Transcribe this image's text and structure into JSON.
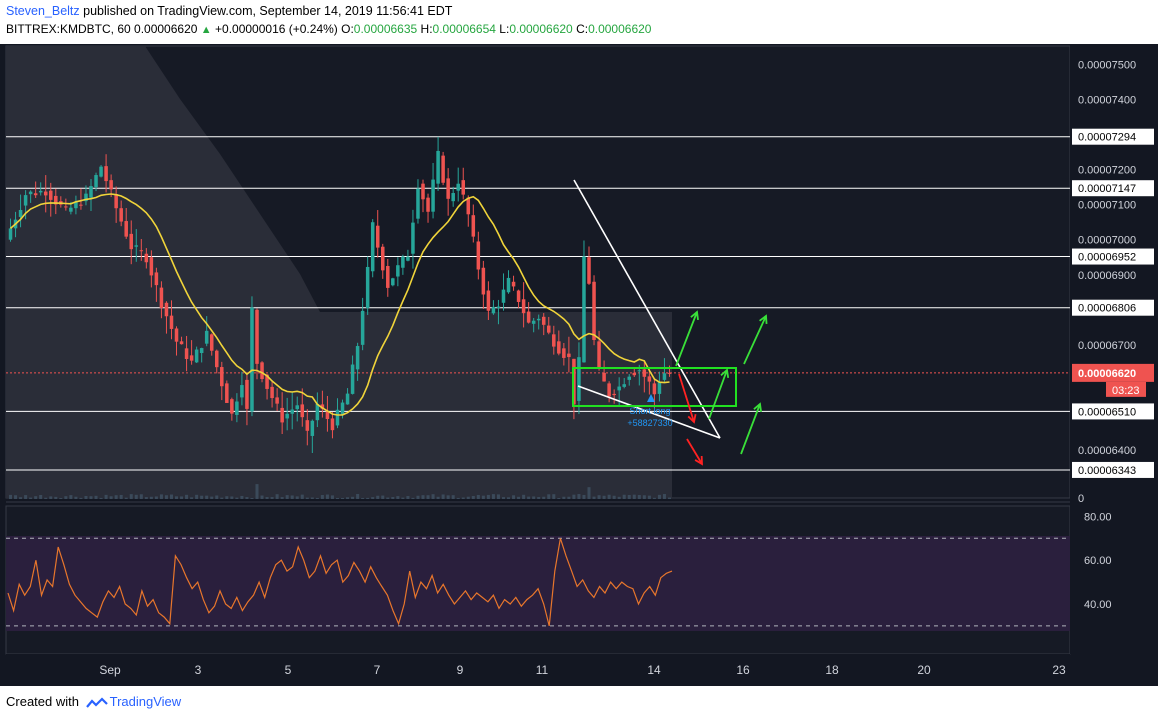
{
  "header": {
    "author": "Steven_Beltz",
    "published": "published on TradingView.com, September 14, 2019 11:56:41 EDT",
    "symbol": "BITTREX:KMDBTC, 60",
    "last": "0.00006620",
    "change_arrow": "▲",
    "change": "+0.00000016 (+0.24%)",
    "open_label": "O:",
    "open": "0.00006635",
    "high_label": "H:",
    "high": "0.00006654",
    "low_label": "L:",
    "low": "0.00006620",
    "close_label": "C:",
    "close": "0.00006620"
  },
  "footer": {
    "created_with": "Created with",
    "brand": "TradingView"
  },
  "chart_data": [
    {
      "type": "candlestick",
      "title": "",
      "x_ticks": [
        "Sep",
        "3",
        "5",
        "7",
        "9",
        "11",
        "14",
        "16",
        "18",
        "20",
        "23"
      ],
      "y_ticks": [
        "0.00007500",
        "0.00007400",
        "0.00007200",
        "0.00007100",
        "0.00007000",
        "0.00006900",
        "0.00006700",
        "0.00006400"
      ],
      "ylim": [
        6.32e-05,
        7.53e-05
      ],
      "horizontal_levels": [
        "0.00007294",
        "0.00007147",
        "0.00006952",
        "0.00006806",
        "0.00006510",
        "0.00006343"
      ],
      "current_price": "0.00006620",
      "countdown": "03:23",
      "volume_axis_label": "0",
      "moving_average_color": "#f0d43a",
      "up_color": "#26a69a",
      "down_color": "#ef5350",
      "annotation_lines": [
        "Short long",
        "+58827330"
      ],
      "path": [
        [
          0,
          7000
        ],
        [
          4,
          7130
        ],
        [
          8,
          7140
        ],
        [
          12,
          7080
        ],
        [
          16,
          7120
        ],
        [
          19,
          7210
        ],
        [
          22,
          7090
        ],
        [
          25,
          6980
        ],
        [
          28,
          6950
        ],
        [
          31,
          6820
        ],
        [
          34,
          6710
        ],
        [
          37,
          6650
        ],
        [
          40,
          6730
        ],
        [
          43,
          6590
        ],
        [
          45,
          6500
        ],
        [
          47,
          6600
        ],
        [
          48,
          6510
        ],
        [
          49,
          6800
        ],
        [
          50,
          6650
        ],
        [
          52,
          6580
        ],
        [
          55,
          6490
        ],
        [
          58,
          6530
        ],
        [
          60,
          6440
        ],
        [
          62,
          6530
        ],
        [
          65,
          6470
        ],
        [
          68,
          6560
        ],
        [
          70,
          6700
        ],
        [
          72,
          6910
        ],
        [
          73,
          7040
        ],
        [
          74,
          6980
        ],
        [
          76,
          6870
        ],
        [
          78,
          6920
        ],
        [
          80,
          6960
        ],
        [
          82,
          7160
        ],
        [
          84,
          7080
        ],
        [
          86,
          7240
        ],
        [
          88,
          7110
        ],
        [
          90,
          7170
        ],
        [
          92,
          7070
        ],
        [
          94,
          6920
        ],
        [
          96,
          6790
        ],
        [
          98,
          6820
        ],
        [
          100,
          6880
        ],
        [
          102,
          6830
        ],
        [
          104,
          6760
        ],
        [
          106,
          6780
        ],
        [
          108,
          6730
        ],
        [
          110,
          6690
        ],
        [
          112,
          6660
        ],
        [
          113,
          6540
        ],
        [
          114,
          6650
        ],
        [
          115,
          6950
        ],
        [
          116,
          6880
        ],
        [
          117,
          6710
        ],
        [
          118,
          6620
        ],
        [
          120,
          6560
        ],
        [
          122,
          6580
        ],
        [
          124,
          6620
        ],
        [
          126,
          6630
        ],
        [
          128,
          6590
        ],
        [
          129,
          6560
        ],
        [
          130,
          6600
        ],
        [
          131,
          6620
        ]
      ]
    },
    {
      "type": "line",
      "title": "",
      "y_ticks": [
        "80.00",
        "60.00",
        "40.00"
      ],
      "ylim": [
        19,
        82
      ],
      "bands": [
        30,
        70
      ],
      "line_color": "#e8762c",
      "values": [
        45,
        37,
        49,
        44,
        48,
        60,
        44,
        51,
        48,
        66,
        58,
        49,
        44,
        41,
        38,
        36,
        34,
        41,
        46,
        43,
        48,
        40,
        38,
        35,
        46,
        39,
        42,
        36,
        34,
        31,
        62,
        58,
        52,
        47,
        50,
        42,
        36,
        39,
        46,
        40,
        38,
        43,
        37,
        41,
        44,
        50,
        43,
        52,
        58,
        60,
        55,
        57,
        66,
        60,
        52,
        55,
        62,
        54,
        58,
        60,
        50,
        53,
        59,
        55,
        50,
        57,
        52,
        48,
        44,
        37,
        31,
        40,
        55,
        43,
        50,
        47,
        53,
        45,
        49,
        44,
        40,
        43,
        46,
        42,
        45,
        43,
        41,
        44,
        38,
        42,
        40,
        43,
        39,
        42,
        44,
        47,
        40,
        30,
        55,
        70,
        62,
        55,
        48,
        51,
        46,
        43,
        48,
        45,
        50,
        47,
        50,
        48,
        47,
        40,
        45,
        48,
        44,
        52,
        54,
        55
      ]
    }
  ]
}
